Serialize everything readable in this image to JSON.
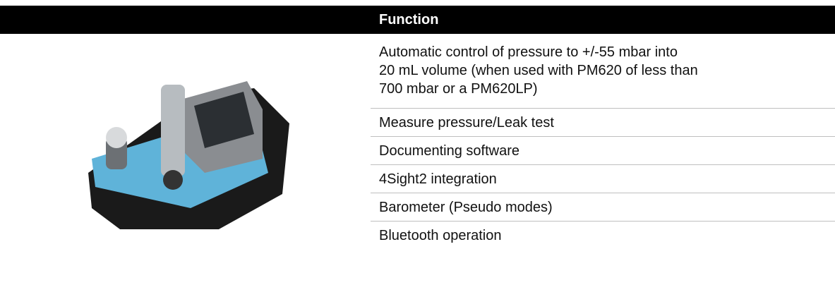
{
  "table": {
    "header": "Function",
    "rows": [
      [
        "Automatic control of pressure to +/-55 mbar into",
        "20 mL volume (when used with PM620 of less than",
        "700 mbar or a PM620LP)"
      ],
      [
        "Measure pressure/Leak test"
      ],
      [
        "Documenting software"
      ],
      [
        "4Sight2 integration"
      ],
      [
        "Barometer (Pseudo modes)"
      ],
      [
        "Bluetooth operation"
      ]
    ]
  }
}
